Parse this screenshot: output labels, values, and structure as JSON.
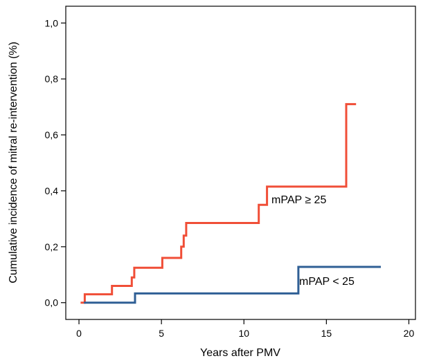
{
  "chart_data": {
    "type": "line",
    "step": true,
    "xlabel": "Years after PMV",
    "ylabel": "Cumulative incidence of mitral re-intervention (%)",
    "xlim": [
      -0.8,
      20.4
    ],
    "ylim": [
      -0.06,
      1.06
    ],
    "xticks": [
      0,
      5,
      10,
      15,
      20
    ],
    "xtick_labels": [
      "0",
      "5",
      "10",
      "15",
      "20"
    ],
    "yticks": [
      0.0,
      0.2,
      0.4,
      0.6,
      0.8,
      1.0
    ],
    "ytick_labels": [
      "0,0",
      "0,2",
      "0,4",
      "0,6",
      "0,8",
      "1,0"
    ],
    "grid": false,
    "series": [
      {
        "name": "mPAP ≥ 25",
        "color": "#f04e37",
        "points": [
          [
            0.1,
            0.0
          ],
          [
            0.35,
            0.0
          ],
          [
            0.35,
            0.03
          ],
          [
            2.0,
            0.03
          ],
          [
            2.0,
            0.06
          ],
          [
            3.2,
            0.06
          ],
          [
            3.2,
            0.09
          ],
          [
            3.35,
            0.09
          ],
          [
            3.35,
            0.125
          ],
          [
            5.05,
            0.125
          ],
          [
            5.05,
            0.16
          ],
          [
            6.2,
            0.16
          ],
          [
            6.2,
            0.2
          ],
          [
            6.35,
            0.2
          ],
          [
            6.35,
            0.24
          ],
          [
            6.5,
            0.24
          ],
          [
            6.5,
            0.285
          ],
          [
            10.9,
            0.285
          ],
          [
            10.9,
            0.35
          ],
          [
            11.4,
            0.35
          ],
          [
            11.4,
            0.415
          ],
          [
            16.2,
            0.415
          ],
          [
            16.2,
            0.71
          ],
          [
            16.8,
            0.71
          ]
        ]
      },
      {
        "name": "mPAP < 25",
        "color": "#2f5f95",
        "points": [
          [
            0.3,
            0.0
          ],
          [
            3.4,
            0.0
          ],
          [
            3.4,
            0.033
          ],
          [
            13.3,
            0.033
          ],
          [
            13.3,
            0.128
          ],
          [
            18.3,
            0.128
          ]
        ]
      }
    ]
  }
}
